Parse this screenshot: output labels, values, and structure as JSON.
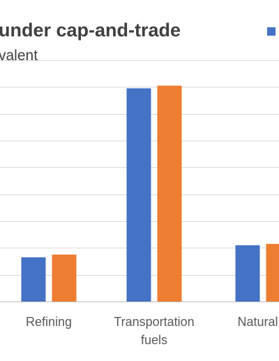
{
  "chart_data": {
    "type": "bar",
    "title": "under cap-and-trade",
    "subtitle": "valent",
    "categories": [
      [
        "Refining"
      ],
      [
        "Transportation",
        "fuels"
      ],
      [
        "Natural g"
      ]
    ],
    "series": [
      {
        "color": "#4472c4",
        "values": [
          16.5,
          79.5,
          21
        ]
      },
      {
        "color": "#ed7d31",
        "values": [
          17.5,
          80.5,
          21.5
        ]
      }
    ],
    "ylim": [
      0,
      90
    ],
    "grid": true,
    "legend": "top-right"
  }
}
